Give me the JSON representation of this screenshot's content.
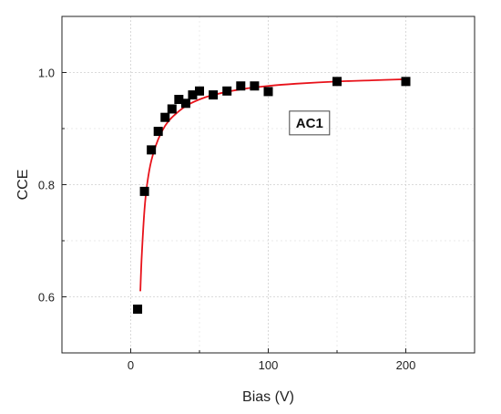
{
  "chart_data": {
    "type": "scatter",
    "xlabel": "Bias (V)",
    "ylabel": "CCE",
    "xlim": [
      -50,
      250
    ],
    "ylim": [
      0.5,
      1.1
    ],
    "x_ticks": [
      0,
      100,
      200
    ],
    "y_ticks": [
      0.6,
      0.8,
      1.0
    ],
    "x_tick_labels": [
      "0",
      "100",
      "200"
    ],
    "y_tick_labels": [
      "0.6",
      "0.8",
      "1.0"
    ],
    "grid": true,
    "annotation": "AC1",
    "annotation_position": {
      "x": 130,
      "y": 0.91
    },
    "series": [
      {
        "marker": "square",
        "color": "#000000",
        "x": [
          5,
          10,
          15,
          20,
          25,
          30,
          35,
          40,
          45,
          50,
          60,
          70,
          80,
          90,
          100,
          150,
          200
        ],
        "y": [
          0.578,
          0.788,
          0.862,
          0.895,
          0.92,
          0.935,
          0.952,
          0.945,
          0.96,
          0.967,
          0.96,
          0.967,
          0.976,
          0.976,
          0.966,
          0.984,
          0.984
        ]
      }
    ],
    "fit": {
      "color": "#e8121a",
      "x_start": 7,
      "x_end": 200,
      "x": [
        7,
        8,
        10,
        12,
        15,
        20,
        25,
        30,
        40,
        50,
        60,
        80,
        100,
        120,
        150,
        175,
        200
      ],
      "y": [
        0.61,
        0.672,
        0.755,
        0.802,
        0.843,
        0.881,
        0.905,
        0.92,
        0.94,
        0.952,
        0.96,
        0.97,
        0.976,
        0.98,
        0.984,
        0.986,
        0.988
      ]
    }
  }
}
